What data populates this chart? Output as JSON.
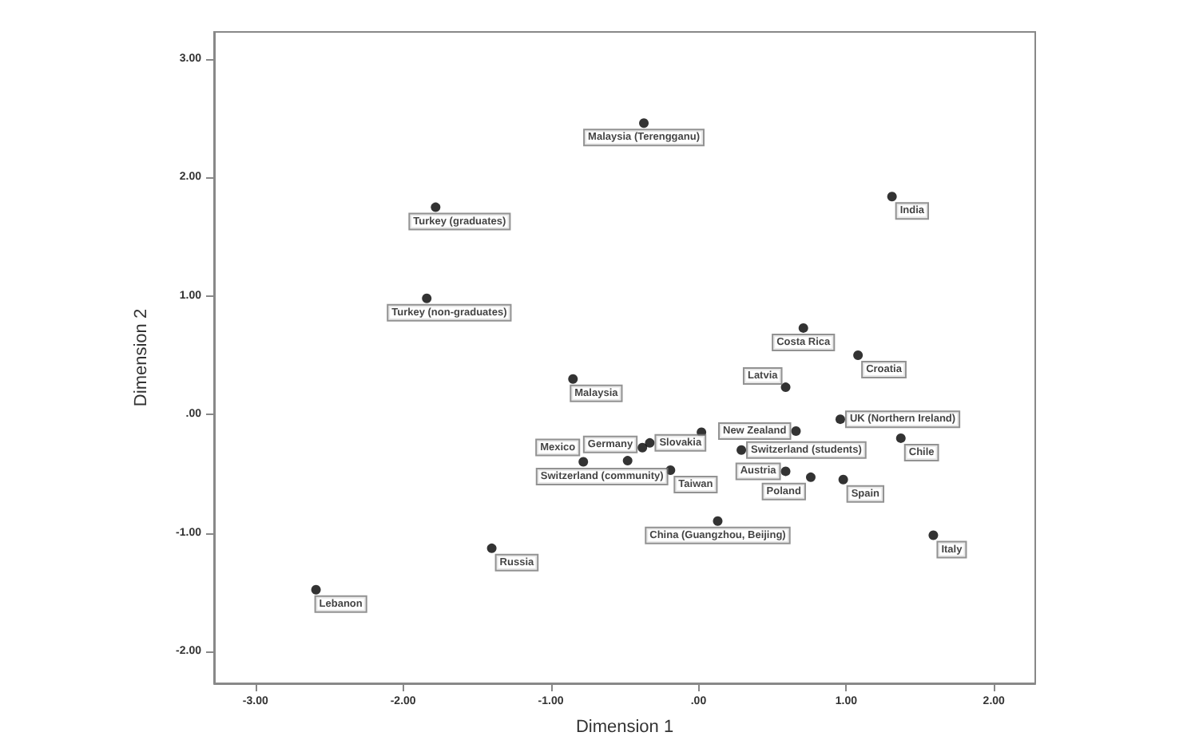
{
  "chart_data": {
    "type": "scatter",
    "xlabel": "Dimension 1",
    "ylabel": "Dimension 2",
    "color": "#000000",
    "marker": "circle",
    "grid": false,
    "x": [
      -0.37,
      -1.78,
      -1.84,
      -0.85,
      1.31,
      0.71,
      1.08,
      0.59,
      0.96,
      0.66,
      1.37,
      0.29,
      0.59,
      0.76,
      0.98,
      -0.38,
      -0.33,
      0.02,
      -0.78,
      -0.48,
      -0.19,
      0.13,
      -1.4,
      1.59,
      -2.59
    ],
    "values": [
      2.46,
      1.75,
      0.98,
      0.3,
      1.84,
      0.73,
      0.5,
      0.23,
      -0.04,
      -0.14,
      -0.2,
      -0.3,
      -0.48,
      -0.53,
      -0.55,
      -0.28,
      -0.24,
      -0.15,
      -0.4,
      -0.39,
      -0.47,
      -0.9,
      -1.13,
      -1.02,
      -1.48
    ],
    "xlim": [
      -3.28,
      2.28
    ],
    "ylim": [
      -2.27,
      3.23
    ],
    "xticks": [
      {
        "value": -3,
        "label": "-3.00"
      },
      {
        "value": -2,
        "label": "-2.00"
      },
      {
        "value": -1,
        "label": "-1.00"
      },
      {
        "value": 0,
        "label": ".00"
      },
      {
        "value": 1,
        "label": "1.00"
      },
      {
        "value": 2,
        "label": "2.00"
      }
    ],
    "yticks": [
      {
        "value": -2,
        "label": "-2.00"
      },
      {
        "value": -1,
        "label": "-1.00"
      },
      {
        "value": 0,
        "label": ".00"
      },
      {
        "value": 1,
        "label": "1.00"
      },
      {
        "value": 2,
        "label": "2.00"
      },
      {
        "value": 3,
        "label": "3.00"
      }
    ],
    "annotations": [
      {
        "text": "Malaysia (Terengganu)",
        "x": -0.37,
        "y": 2.46
      },
      {
        "text": "Turkey (graduates)",
        "x": -1.78,
        "y": 1.75
      },
      {
        "text": "Turkey (non-graduates)",
        "x": -1.84,
        "y": 0.98
      },
      {
        "text": "Malaysia",
        "x": -0.85,
        "y": 0.3
      },
      {
        "text": "India",
        "x": 1.31,
        "y": 1.84
      },
      {
        "text": "Costa Rica",
        "x": 0.71,
        "y": 0.73
      },
      {
        "text": "Croatia",
        "x": 1.08,
        "y": 0.5
      },
      {
        "text": "Latvia",
        "x": 0.59,
        "y": 0.23
      },
      {
        "text": "UK (Northern Ireland)",
        "x": 0.96,
        "y": -0.04
      },
      {
        "text": "New Zealand",
        "x": 0.66,
        "y": -0.14
      },
      {
        "text": "Chile",
        "x": 1.37,
        "y": -0.2
      },
      {
        "text": "Switzerland (students)",
        "x": 0.29,
        "y": -0.3
      },
      {
        "text": "Austria",
        "x": 0.59,
        "y": -0.48
      },
      {
        "text": "Poland",
        "x": 0.76,
        "y": -0.53
      },
      {
        "text": "Spain",
        "x": 0.98,
        "y": -0.55
      },
      {
        "text": "Germany",
        "x": -0.38,
        "y": -0.28
      },
      {
        "text": "Slovakia",
        "x": -0.33,
        "y": -0.24
      },
      {
        "text": "Mexico",
        "x": -0.78,
        "y": -0.4
      },
      {
        "text": "Switzerland (community)",
        "x": -0.48,
        "y": -0.39
      },
      {
        "text": "Taiwan",
        "x": -0.19,
        "y": -0.47
      },
      {
        "text": "China (Guangzhou, Beijing)",
        "x": 0.13,
        "y": -0.9
      },
      {
        "text": "Russia",
        "x": -1.4,
        "y": -1.13
      },
      {
        "text": "Italy",
        "x": 1.59,
        "y": -1.02
      },
      {
        "text": "Lebanon",
        "x": -2.59,
        "y": -1.48
      }
    ]
  }
}
